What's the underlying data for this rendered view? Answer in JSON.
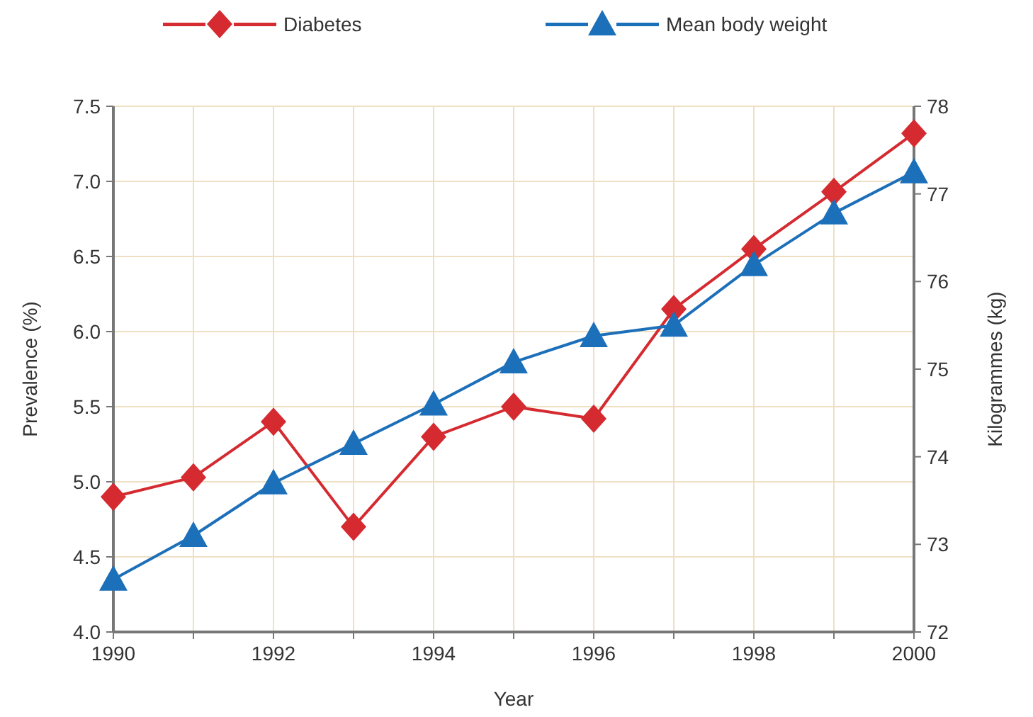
{
  "chart_data": {
    "type": "line",
    "xlabel": "Year",
    "ylabel": "Prevalence (%)",
    "y2label": "Kilogrammes (kg)",
    "x": [
      1990,
      1991,
      1992,
      1993,
      1994,
      1995,
      1996,
      1997,
      1998,
      1999,
      2000
    ],
    "xlim": [
      1990,
      2000
    ],
    "xticks": [
      1990,
      1992,
      1994,
      1996,
      1998,
      2000
    ],
    "ylim": [
      4.0,
      7.5
    ],
    "yticks": [
      {
        "value": 4,
        "label": "4.0"
      },
      {
        "value": 4.5,
        "label": "4.5"
      },
      {
        "value": 5,
        "label": "5.0"
      },
      {
        "value": 5.5,
        "label": "5.5"
      },
      {
        "value": 6,
        "label": "6.0"
      },
      {
        "value": 6.5,
        "label": "6.5"
      },
      {
        "value": 7,
        "label": "7.0"
      },
      {
        "value": 7.5,
        "label": "7.5"
      }
    ],
    "y2lim": [
      72,
      78
    ],
    "y2ticks": [
      72,
      73,
      74,
      75,
      76,
      77,
      78
    ],
    "grid": true,
    "legend": "top",
    "series": [
      {
        "name": "Diabetes",
        "color": "#d42a30",
        "marker": "diamond",
        "values": [
          4.9,
          5.03,
          5.4,
          4.7,
          5.3,
          5.5,
          5.42,
          6.15,
          6.55,
          6.93,
          7.32
        ]
      },
      {
        "name": "Mean body weight",
        "color": "#1c6fb9",
        "marker": "triangle",
        "axis": "y2",
        "values": [
          72.6,
          73.1,
          73.7,
          74.15,
          74.6,
          75.08,
          75.38,
          75.5,
          76.19,
          76.78,
          77.25
        ]
      }
    ]
  }
}
